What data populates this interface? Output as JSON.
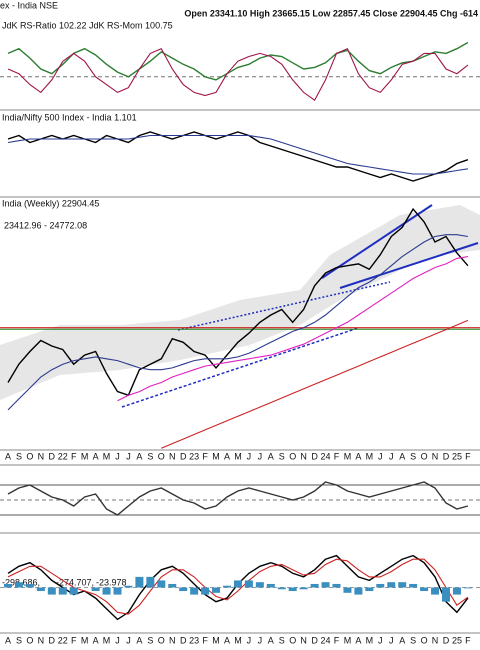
{
  "chart_data": [
    {
      "type": "line",
      "title": "JdK RS-Ratio 102.22 JdK RS-Mom 100.75",
      "ylim": [
        98,
        103
      ],
      "hlines": [
        {
          "value": 100,
          "color": "#777777"
        }
      ],
      "series": [
        {
          "name": "JdK RS-Ratio",
          "color": "#2e7d32",
          "values": [
            101.5,
            101.8,
            101.2,
            100.5,
            100.2,
            100.8,
            101.5,
            101.8,
            101.4,
            100.8,
            100.3,
            100.0,
            100.5,
            101.0,
            101.6,
            101.2,
            100.8,
            100.5,
            100.0,
            99.8,
            100.2,
            100.6,
            100.8,
            101.2,
            101.4,
            101.3,
            100.9,
            100.5,
            100.6,
            100.9,
            101.5,
            101.7,
            101.0,
            100.4,
            100.2,
            100.6,
            100.9,
            101.0,
            101.3,
            101.6,
            101.5,
            101.8,
            102.2
          ]
        },
        {
          "name": "JdK RS-Mom",
          "color": "#a0154a",
          "values": [
            100.5,
            100.2,
            99.5,
            99.0,
            99.8,
            101.0,
            101.5,
            101.0,
            100.0,
            99.5,
            99.0,
            99.3,
            100.5,
            101.5,
            101.8,
            100.5,
            99.5,
            99.0,
            98.8,
            99.0,
            100.2,
            101.0,
            101.3,
            101.5,
            101.3,
            100.8,
            99.8,
            99.0,
            98.5,
            99.8,
            101.5,
            101.8,
            100.2,
            99.3,
            99.0,
            99.8,
            100.8,
            101.0,
            101.5,
            101.5,
            100.5,
            100.2,
            100.75
          ]
        }
      ]
    },
    {
      "type": "line",
      "title": "India/Nifty 500 Index - India 1.101",
      "ylim": [
        1.0,
        1.2
      ],
      "hlines": [],
      "series": [
        {
          "name": "Ratio",
          "color": "#000000",
          "values": [
            1.16,
            1.17,
            1.15,
            1.16,
            1.17,
            1.16,
            1.17,
            1.16,
            1.15,
            1.17,
            1.16,
            1.15,
            1.17,
            1.18,
            1.17,
            1.16,
            1.17,
            1.18,
            1.17,
            1.16,
            1.17,
            1.18,
            1.17,
            1.15,
            1.14,
            1.13,
            1.12,
            1.11,
            1.1,
            1.09,
            1.08,
            1.08,
            1.07,
            1.06,
            1.05,
            1.06,
            1.05,
            1.04,
            1.05,
            1.06,
            1.07,
            1.09,
            1.101
          ]
        },
        {
          "name": "MA",
          "color": "#2b3a8f",
          "values": [
            1.15,
            1.155,
            1.16,
            1.16,
            1.16,
            1.16,
            1.16,
            1.16,
            1.16,
            1.16,
            1.16,
            1.16,
            1.165,
            1.17,
            1.17,
            1.17,
            1.17,
            1.17,
            1.17,
            1.17,
            1.17,
            1.17,
            1.17,
            1.165,
            1.16,
            1.15,
            1.14,
            1.13,
            1.12,
            1.11,
            1.1,
            1.09,
            1.085,
            1.08,
            1.075,
            1.07,
            1.065,
            1.06,
            1.06,
            1.06,
            1.065,
            1.07,
            1.075
          ]
        }
      ]
    },
    {
      "type": "line",
      "title": "India (Weekly) 22904.45",
      "subtitle": "23412.96 - 24772.08",
      "header_left": "ex - India NSE",
      "header_right": "Open 23341.10 High 23665.15 Low 22857.45 Close 22904.45 Chg -614",
      "categories": [
        "A",
        "S",
        "O",
        "N",
        "D",
        "22",
        "F",
        "M",
        "A",
        "M",
        "J",
        "J",
        "A",
        "S",
        "O",
        "N",
        "D",
        "23",
        "F",
        "M",
        "A",
        "M",
        "J",
        "J",
        "A",
        "S",
        "O",
        "N",
        "D",
        "24",
        "F",
        "M",
        "A",
        "M",
        "J",
        "J",
        "A",
        "S",
        "O",
        "N",
        "D",
        "25",
        "F"
      ],
      "ylim": [
        12800,
        26500
      ],
      "hlines": [
        {
          "value": 19500,
          "color": "#cc0000"
        },
        {
          "value": 19420,
          "color": "#1a8a1a"
        }
      ],
      "series": [
        {
          "name": "Price",
          "color": "#000000",
          "values": [
            16500,
            17500,
            18200,
            18800,
            18500,
            18300,
            17500,
            18000,
            18200,
            17000,
            16000,
            15800,
            17200,
            17500,
            17800,
            18900,
            18700,
            18200,
            18000,
            17300,
            18000,
            18700,
            19200,
            19800,
            20200,
            20500,
            19800,
            20500,
            21800,
            22500,
            22800,
            22900,
            23000,
            22700,
            23500,
            24500,
            25000,
            26000,
            25300,
            24200,
            24500,
            23600,
            22900
          ]
        },
        {
          "name": "MA1",
          "color": "#2b3a8f",
          "values": [
            15000,
            15600,
            16200,
            16800,
            17200,
            17500,
            17700,
            17800,
            17900,
            17800,
            17700,
            17500,
            17300,
            17200,
            17200,
            17300,
            17500,
            17700,
            17800,
            17800,
            17800,
            17900,
            18100,
            18400,
            18700,
            19000,
            19300,
            19500,
            19800,
            20200,
            20700,
            21200,
            21700,
            22000,
            22400,
            22900,
            23400,
            23800,
            24200,
            24500,
            24600,
            24600,
            24500
          ]
        },
        {
          "name": "MA2",
          "color": "#e020c0",
          "values": [
            null,
            null,
            null,
            null,
            null,
            null,
            null,
            null,
            null,
            null,
            15500,
            15800,
            16000,
            16300,
            16500,
            16800,
            17000,
            17200,
            17400,
            17500,
            17600,
            17700,
            17800,
            17900,
            18000,
            18200,
            18400,
            18600,
            18900,
            19200,
            19500,
            19800,
            20200,
            20600,
            21000,
            21400,
            21800,
            22200,
            22500,
            22800,
            23000,
            23300,
            23400
          ]
        },
        {
          "name": "MA3",
          "color": "#cc2222",
          "values": [
            null,
            null,
            null,
            null,
            null,
            null,
            null,
            null,
            null,
            null,
            null,
            null,
            null,
            null,
            12900,
            13150,
            13400,
            13650,
            13900,
            14150,
            14400,
            14650,
            14900,
            15150,
            15400,
            15650,
            15900,
            16150,
            16400,
            16650,
            16900,
            17150,
            17400,
            17650,
            17900,
            18150,
            18400,
            18650,
            18900,
            19150,
            19400,
            19650,
            19900
          ]
        }
      ]
    },
    {
      "type": "line",
      "ylim": [
        -1,
        1
      ],
      "hlines": [
        {
          "value": 0.5,
          "color": "#555555"
        },
        {
          "value": 0,
          "color": "#777777"
        },
        {
          "value": -0.5,
          "color": "#555555"
        }
      ],
      "series": [
        {
          "name": "Oscillator",
          "color": "#333333",
          "values": [
            0.2,
            0.4,
            0.5,
            0.3,
            0.1,
            0.0,
            -0.2,
            0.1,
            0.2,
            -0.3,
            -0.5,
            -0.2,
            0.1,
            0.3,
            0.4,
            0.2,
            0.0,
            -0.1,
            -0.3,
            -0.2,
            0.1,
            0.3,
            0.4,
            0.3,
            0.2,
            0.1,
            0.0,
            0.1,
            0.3,
            0.6,
            0.5,
            0.3,
            0.2,
            0.1,
            0.2,
            0.3,
            0.4,
            0.5,
            0.6,
            0.4,
            -0.1,
            -0.3,
            -0.2
          ]
        }
      ]
    },
    {
      "type": "line",
      "title_parts": [
        "-298.686,",
        "-274.707,",
        "-23.978"
      ],
      "ylim": [
        -1200,
        1200
      ],
      "hlines": [
        {
          "value": 0,
          "color": "#999999"
        }
      ],
      "series": [
        {
          "name": "MACD",
          "color": "#000000",
          "values": [
            400,
            600,
            700,
            500,
            200,
            0,
            -200,
            -100,
            -300,
            -600,
            -900,
            -700,
            -200,
            200,
            500,
            600,
            400,
            100,
            -200,
            -400,
            -300,
            100,
            400,
            600,
            700,
            600,
            400,
            300,
            500,
            800,
            900,
            600,
            300,
            200,
            400,
            600,
            800,
            900,
            700,
            300,
            -400,
            -700,
            -298.686
          ]
        },
        {
          "name": "Signal",
          "color": "#cc2222",
          "values": [
            300,
            450,
            600,
            600,
            400,
            200,
            0,
            -100,
            -200,
            -400,
            -700,
            -750,
            -500,
            -100,
            300,
            500,
            500,
            300,
            0,
            -250,
            -350,
            -100,
            200,
            450,
            600,
            650,
            500,
            350,
            400,
            650,
            800,
            750,
            500,
            300,
            300,
            450,
            650,
            800,
            800,
            500,
            0,
            -500,
            -274.707
          ]
        },
        {
          "name": "Histogram",
          "color": "#3a8fc0",
          "style": "bar",
          "values": [
            100,
            150,
            100,
            -100,
            -200,
            -200,
            -200,
            0,
            -100,
            -200,
            -200,
            50,
            300,
            300,
            200,
            100,
            -100,
            -200,
            -200,
            -150,
            50,
            200,
            200,
            150,
            100,
            -50,
            -100,
            -50,
            100,
            150,
            100,
            -150,
            -200,
            -100,
            100,
            150,
            150,
            100,
            -100,
            -200,
            -400,
            -200,
            -23.978
          ]
        }
      ]
    }
  ]
}
